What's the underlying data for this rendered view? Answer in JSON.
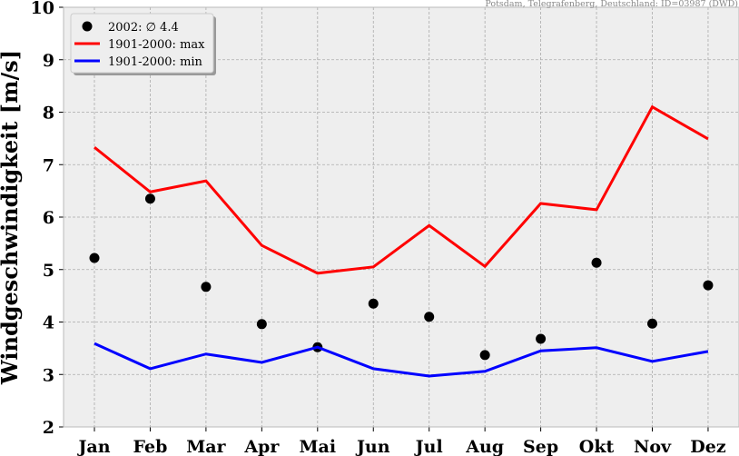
{
  "chart_data": {
    "type": "line",
    "title": "",
    "source_note": "Potsdam, Telegrafenberg, Deutschland: ID=03987 (DWD)",
    "xlabel": "",
    "ylabel": "Windgeschwindigkeit [m/s]",
    "ylim": [
      2,
      10
    ],
    "yticks": [
      2,
      3,
      4,
      5,
      6,
      7,
      8,
      9,
      10
    ],
    "grid": true,
    "legend_position": "top-left",
    "categories": [
      "Jan",
      "Feb",
      "Mar",
      "Apr",
      "Mai",
      "Jun",
      "Jul",
      "Aug",
      "Sep",
      "Okt",
      "Nov",
      "Dez"
    ],
    "series": [
      {
        "name": "2002: ∅ 4.4",
        "style": "scatter",
        "color": "#000000",
        "values": [
          5.22,
          6.35,
          4.67,
          3.96,
          3.52,
          4.35,
          4.1,
          3.37,
          3.68,
          5.13,
          3.97,
          4.7
        ]
      },
      {
        "name": "1901-2000: max",
        "style": "line",
        "color": "#ff0000",
        "values": [
          7.33,
          6.48,
          6.69,
          5.46,
          4.93,
          5.05,
          5.84,
          5.06,
          6.26,
          6.14,
          8.1,
          7.49
        ]
      },
      {
        "name": "1901-2000: min",
        "style": "line",
        "color": "#0000ff",
        "values": [
          3.59,
          3.11,
          3.39,
          3.23,
          3.52,
          3.11,
          2.97,
          3.06,
          3.45,
          3.51,
          3.25,
          3.44
        ]
      }
    ]
  }
}
